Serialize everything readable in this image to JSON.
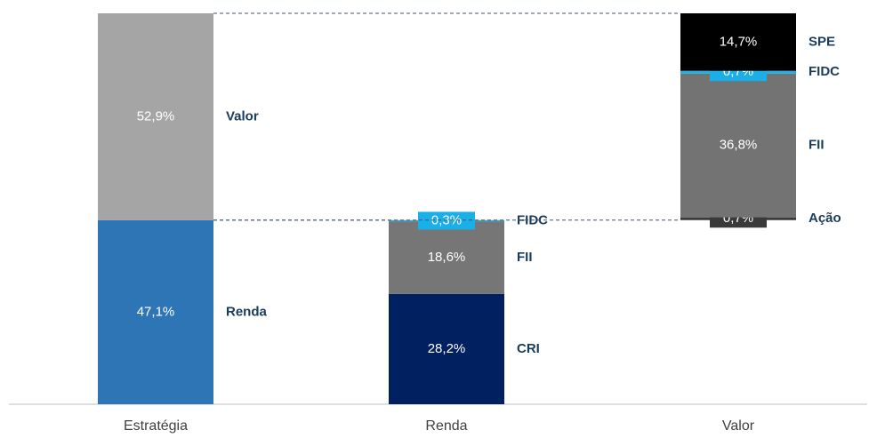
{
  "chart_data": {
    "type": "stacked-breakdown",
    "categories": [
      "Estratégia",
      "Renda",
      "Valor"
    ],
    "ylim": [
      0,
      100
    ],
    "stacks": [
      {
        "names": [
          "Renda",
          "Valor"
        ],
        "values": [
          47.1,
          52.9
        ],
        "value_labels": [
          "47,1%",
          "52,9%"
        ],
        "colors": [
          "#2e75b6",
          "#a5a5a5"
        ]
      },
      {
        "names": [
          "CRI",
          "FII",
          "FIDC"
        ],
        "values": [
          28.2,
          18.6,
          0.3
        ],
        "value_labels": [
          "28,2%",
          "18,6%",
          "0,3%"
        ],
        "colors": [
          "#002060",
          "#767676",
          "#1aafe6"
        ]
      },
      {
        "names": [
          "Ação",
          "FII",
          "FIDC",
          "SPE"
        ],
        "values": [
          0.7,
          36.8,
          0.7,
          14.7
        ],
        "value_labels": [
          "0,7%",
          "36,8%",
          "0,7%",
          "14,7%"
        ],
        "colors": [
          "#3a3a3a",
          "#737373",
          "#1aafe6",
          "#000000"
        ]
      }
    ]
  }
}
